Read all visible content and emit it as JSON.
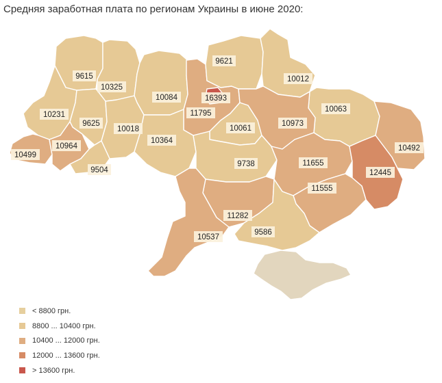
{
  "title": "Средняя заработная плата по регионам Украины в июне 2020:",
  "colors": {
    "level0": "#e2d6be",
    "level1": "#e6c995",
    "level2": "#dfad81",
    "level3": "#d68b65",
    "level4": "#c9574c"
  },
  "legend": [
    {
      "label": "< 8800 грн.",
      "color": "#e6cf9e"
    },
    {
      "label": "8800 ... 10400 грн.",
      "color": "#e6c995"
    },
    {
      "label": "10400 ... 12000 грн.",
      "color": "#dfad81"
    },
    {
      "label": "12000 ... 13600 грн.",
      "color": "#d68b65"
    },
    {
      "label": "> 13600 грн.",
      "color": "#c9574c"
    }
  ],
  "regions": [
    {
      "id": "volyn",
      "value": "9615",
      "level": "level1"
    },
    {
      "id": "rivne",
      "value": "10325",
      "level": "level1"
    },
    {
      "id": "zhytomyr",
      "value": "10084",
      "level": "level1"
    },
    {
      "id": "kyiv-oblast",
      "value": "11795",
      "level": "level2"
    },
    {
      "id": "kyiv-city",
      "value": "16393",
      "level": "level4"
    },
    {
      "id": "chernihiv",
      "value": "9621",
      "level": "level1"
    },
    {
      "id": "sumy",
      "value": "10012",
      "level": "level1"
    },
    {
      "id": "kharkiv",
      "value": "10063",
      "level": "level1"
    },
    {
      "id": "luhansk",
      "value": "10492",
      "level": "level2"
    },
    {
      "id": "lviv",
      "value": "10231",
      "level": "level1"
    },
    {
      "id": "ternopil",
      "value": "9625",
      "level": "level1"
    },
    {
      "id": "khmelnytskyi",
      "value": "10018",
      "level": "level1"
    },
    {
      "id": "cherkasy",
      "value": "10061",
      "level": "level1"
    },
    {
      "id": "poltava",
      "value": "10973",
      "level": "level2"
    },
    {
      "id": "zakarpattia",
      "value": "10499",
      "level": "level2"
    },
    {
      "id": "ivano-frankivsk",
      "value": "10964",
      "level": "level2"
    },
    {
      "id": "vinnytsia",
      "value": "10364",
      "level": "level1"
    },
    {
      "id": "chernivtsi",
      "value": "9504",
      "level": "level1"
    },
    {
      "id": "kirovohrad",
      "value": "9738",
      "level": "level1"
    },
    {
      "id": "dnipropetrovsk",
      "value": "11655",
      "level": "level2"
    },
    {
      "id": "donetsk",
      "value": "12445",
      "level": "level3"
    },
    {
      "id": "zaporizhzhia",
      "value": "11555",
      "level": "level2"
    },
    {
      "id": "mykolaiv",
      "value": "11282",
      "level": "level2"
    },
    {
      "id": "odesa",
      "value": "10537",
      "level": "level2"
    },
    {
      "id": "kherson",
      "value": "9586",
      "level": "level1"
    },
    {
      "id": "crimea",
      "value": "",
      "level": "level0"
    }
  ]
}
